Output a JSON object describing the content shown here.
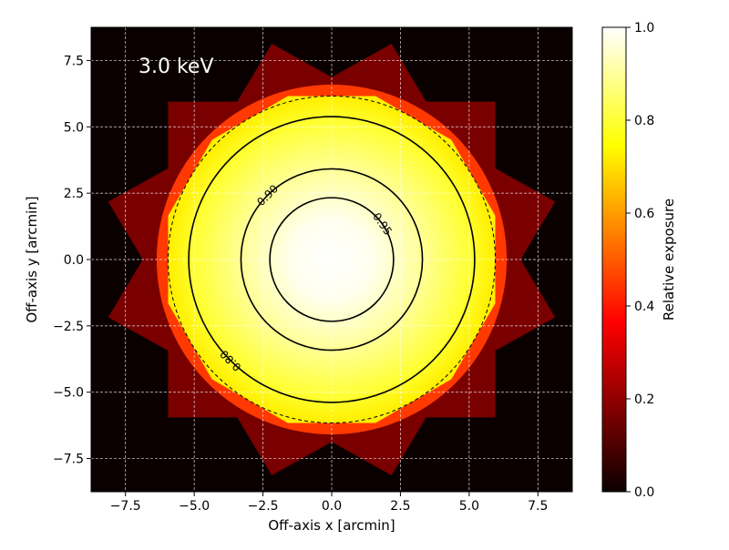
{
  "chart_data": {
    "type": "heatmap",
    "annotation": "3.0 keV",
    "xlabel": "Off-axis x [arcmin]",
    "ylabel": "Off-axis y [arcmin]",
    "xlim": [
      -8.75,
      8.75
    ],
    "ylim": [
      -8.75,
      8.75
    ],
    "xticks": [
      -7.5,
      -5.0,
      -2.5,
      0.0,
      2.5,
      5.0,
      7.5
    ],
    "yticks": [
      -7.5,
      -5.0,
      -2.5,
      0.0,
      2.5,
      5.0,
      7.5
    ],
    "grid": true,
    "colormap": "hot",
    "colorbar": {
      "label": "Relative exposure",
      "range": [
        0.0,
        1.0
      ],
      "ticks": [
        0.0,
        0.2,
        0.4,
        0.6,
        0.8,
        1.0
      ]
    },
    "contours": [
      {
        "level": 0.8,
        "radius_arcmin": 5.2
      },
      {
        "level": 0.9,
        "radius_arcmin": 3.3
      },
      {
        "level": 0.95,
        "radius_arcmin": 2.25
      }
    ],
    "dashed_circle_radius_arcmin": 5.95,
    "footprint": {
      "shape": "rotated squares",
      "half_size_arcmin": 5.95,
      "rotations_deg": [
        0,
        30,
        60
      ],
      "outer_value": 0.15,
      "overlap_value": 0.45
    }
  }
}
